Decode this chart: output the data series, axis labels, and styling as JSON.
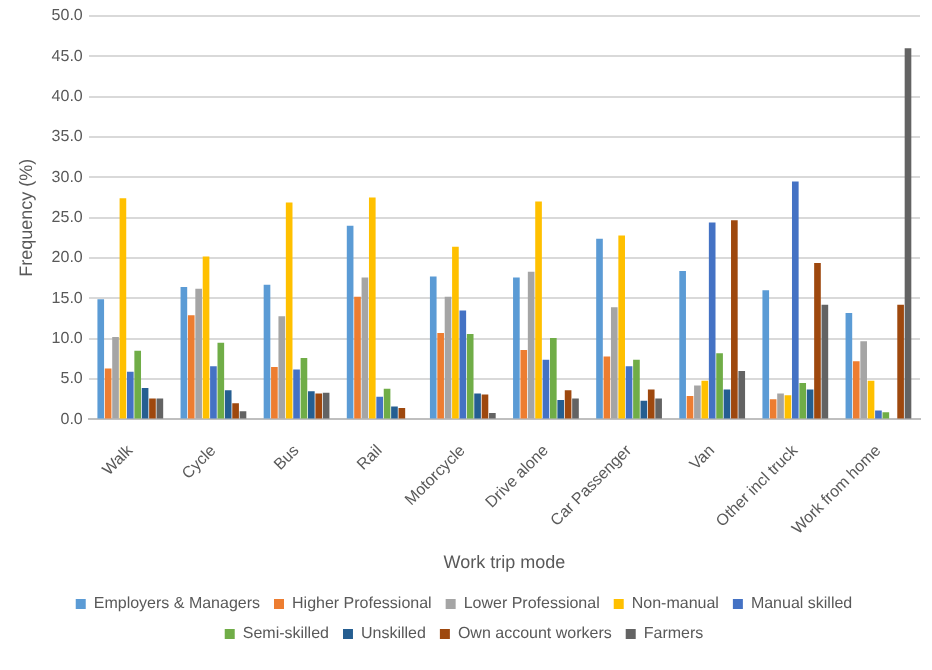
{
  "chart_data": {
    "type": "bar",
    "xlabel": "Work trip mode",
    "ylabel": "Frequency (%)",
    "categories": [
      "Walk",
      "Cycle",
      "Bus",
      "Rail",
      "Motorcycle",
      "Drive alone",
      "Car Passenger",
      "Van",
      "Other incl truck",
      "Work from home"
    ],
    "series": [
      {
        "name": "Employers & Managers",
        "color": "#5b9bd5",
        "values": [
          14.9,
          16.4,
          16.7,
          24.0,
          17.7,
          17.6,
          22.4,
          18.4,
          16.0,
          13.2
        ]
      },
      {
        "name": "Higher Professional",
        "color": "#ed7d31",
        "values": [
          6.3,
          12.9,
          6.5,
          15.2,
          10.7,
          8.6,
          7.8,
          2.9,
          2.5,
          7.2
        ]
      },
      {
        "name": "Lower Professional",
        "color": "#a5a5a5",
        "values": [
          10.2,
          16.2,
          12.8,
          17.6,
          15.2,
          18.3,
          13.9,
          4.2,
          3.2,
          9.7
        ]
      },
      {
        "name": "Non-manual",
        "color": "#ffc000",
        "values": [
          27.4,
          20.2,
          26.9,
          27.5,
          21.4,
          27.0,
          22.8,
          4.8,
          3.0,
          4.8
        ]
      },
      {
        "name": "Manual skilled",
        "color": "#4472c4",
        "values": [
          5.9,
          6.6,
          6.2,
          2.8,
          13.5,
          7.4,
          6.6,
          24.4,
          29.5,
          1.1
        ]
      },
      {
        "name": "Semi-skilled",
        "color": "#70ad47",
        "values": [
          8.5,
          9.5,
          7.6,
          3.8,
          10.6,
          10.1,
          7.4,
          8.2,
          4.5,
          0.9
        ]
      },
      {
        "name": "Unskilled",
        "color": "#255e91",
        "values": [
          3.9,
          3.6,
          3.5,
          1.6,
          3.2,
          2.4,
          2.3,
          3.7,
          3.7,
          null
        ]
      },
      {
        "name": "Own account workers",
        "color": "#9e480e",
        "values": [
          2.6,
          2.0,
          3.2,
          1.4,
          3.1,
          3.6,
          3.7,
          24.7,
          19.4,
          14.2
        ]
      },
      {
        "name": "Farmers",
        "color": "#636363",
        "values": [
          2.6,
          1.0,
          3.3,
          0.1,
          0.8,
          2.6,
          2.6,
          6.0,
          14.2,
          46.0
        ]
      }
    ],
    "ylim": [
      0,
      50
    ],
    "yticks": [
      {
        "value": 0,
        "label": "0.0"
      },
      {
        "value": 5,
        "label": "5.0"
      },
      {
        "value": 10,
        "label": "10.0"
      },
      {
        "value": 15,
        "label": "15.0"
      },
      {
        "value": 20,
        "label": "20.0"
      },
      {
        "value": 25,
        "label": "25.0"
      },
      {
        "value": 30,
        "label": "30.0"
      },
      {
        "value": 35,
        "label": "35.0"
      },
      {
        "value": 40,
        "label": "40.0"
      },
      {
        "value": 45,
        "label": "45.0"
      },
      {
        "value": 50,
        "label": "50.0"
      }
    ],
    "grid": "y",
    "legend": "bottom"
  }
}
